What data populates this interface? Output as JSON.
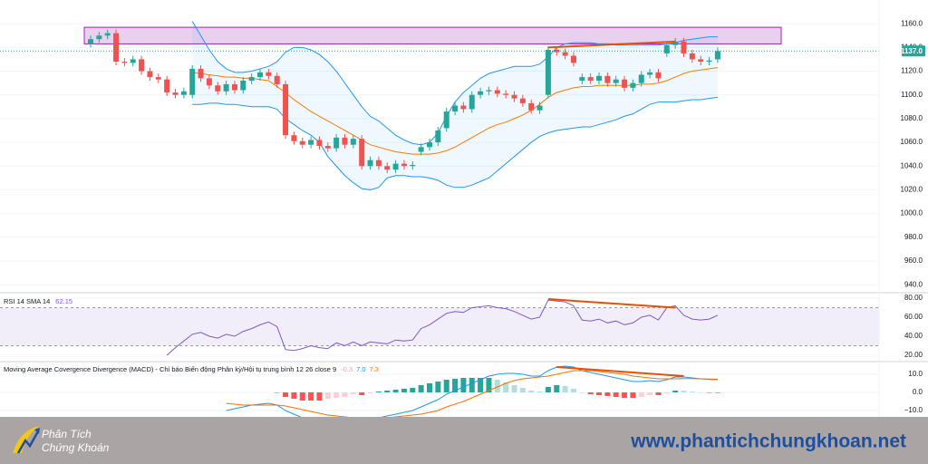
{
  "chart_data": [
    {
      "type": "candlestick",
      "open": [
        1143,
        1147,
        1150,
        1152,
        1128,
        1127,
        1130,
        1120,
        1115,
        1113,
        1102,
        1100,
        1100,
        1122,
        1114,
        1108,
        1103,
        1109,
        1104,
        1112,
        1115,
        1119,
        1116,
        1109,
        1066,
        1061,
        1058,
        1062,
        1057,
        1055,
        1064,
        1058,
        1063,
        1040,
        1045,
        1040,
        1037,
        1042,
        1040,
        1052,
        1056,
        1060,
        1072,
        1086,
        1091,
        1088,
        1100,
        1103,
        1104,
        1101,
        1100,
        1097,
        1093,
        1087,
        1100,
        1138,
        1136,
        1133,
        1112,
        1115,
        1112,
        1116,
        1110,
        1113,
        1106,
        1110,
        1117,
        1119,
        1135,
        1142,
        1145,
        1135,
        1130,
        1128,
        1130
      ],
      "high": [
        1150,
        1153,
        1155,
        1155,
        1131,
        1133,
        1133,
        1123,
        1118,
        1116,
        1105,
        1106,
        1125,
        1125,
        1117,
        1111,
        1112,
        1112,
        1115,
        1118,
        1122,
        1122,
        1119,
        1112,
        1069,
        1064,
        1065,
        1065,
        1060,
        1067,
        1067,
        1066,
        1066,
        1048,
        1048,
        1043,
        1045,
        1045,
        1044,
        1059,
        1063,
        1073,
        1089,
        1094,
        1094,
        1103,
        1106,
        1107,
        1107,
        1104,
        1103,
        1100,
        1096,
        1094,
        1141,
        1141,
        1139,
        1136,
        1118,
        1118,
        1119,
        1119,
        1116,
        1116,
        1113,
        1120,
        1122,
        1122,
        1145,
        1148,
        1148,
        1138,
        1133,
        1132,
        1140
      ],
      "low": [
        1140,
        1144,
        1147,
        1125,
        1124,
        1124,
        1117,
        1112,
        1110,
        1099,
        1097,
        1097,
        1097,
        1111,
        1105,
        1100,
        1100,
        1101,
        1101,
        1109,
        1112,
        1113,
        1106,
        1063,
        1058,
        1055,
        1055,
        1054,
        1052,
        1052,
        1055,
        1055,
        1037,
        1037,
        1037,
        1034,
        1034,
        1037,
        1037,
        1049,
        1053,
        1057,
        1069,
        1083,
        1085,
        1085,
        1097,
        1100,
        1098,
        1097,
        1094,
        1090,
        1084,
        1084,
        1097,
        1133,
        1130,
        1124,
        1109,
        1109,
        1109,
        1107,
        1107,
        1103,
        1103,
        1107,
        1114,
        1111,
        1132,
        1139,
        1132,
        1127,
        1125,
        1125,
        1127
      ],
      "close": [
        1147,
        1150,
        1152,
        1128,
        1127,
        1130,
        1120,
        1115,
        1113,
        1102,
        1100,
        1103,
        1122,
        1114,
        1108,
        1103,
        1109,
        1104,
        1112,
        1115,
        1119,
        1116,
        1109,
        1066,
        1061,
        1058,
        1062,
        1057,
        1055,
        1064,
        1058,
        1063,
        1040,
        1045,
        1040,
        1037,
        1042,
        1040,
        1041,
        1056,
        1060,
        1070,
        1086,
        1091,
        1088,
        1100,
        1103,
        1104,
        1101,
        1100,
        1097,
        1093,
        1087,
        1091,
        1138,
        1136,
        1133,
        1127,
        1115,
        1112,
        1116,
        1110,
        1113,
        1106,
        1110,
        1117,
        1119,
        1114,
        1142,
        1145,
        1135,
        1130,
        1128,
        1129,
        1137
      ],
      "up_color": "#26a69a",
      "down_color": "#ef5350",
      "bands": {
        "upper": [
          null,
          null,
          null,
          null,
          null,
          null,
          null,
          null,
          null,
          null,
          null,
          null,
          1162,
          1150,
          1138,
          1128,
          1122,
          1119,
          1119,
          1120,
          1122,
          1124,
          1128,
          1136,
          1140,
          1140,
          1138,
          1134,
          1128,
          1120,
          1110,
          1100,
          1090,
          1082,
          1078,
          1072,
          1066,
          1062,
          1059,
          1058,
          1060,
          1068,
          1082,
          1094,
          1102,
          1108,
          1114,
          1118,
          1120,
          1122,
          1124,
          1124,
          1124,
          1126,
          1132,
          1140,
          1143,
          1144,
          1144,
          1144,
          1143,
          1143,
          1142,
          1142,
          1142,
          1142,
          1142,
          1142,
          1143,
          1144,
          1146,
          1147,
          1148,
          1149,
          1149
        ],
        "middle": [
          null,
          null,
          null,
          null,
          null,
          null,
          null,
          null,
          null,
          null,
          null,
          null,
          1119,
          1118,
          1117,
          1116,
          1115,
          1115,
          1114,
          1114,
          1113,
          1112,
          1107,
          1102,
          1096,
          1091,
          1086,
          1082,
          1078,
          1074,
          1070,
          1066,
          1062,
          1058,
          1056,
          1054,
          1052,
          1051,
          1050,
          1050,
          1050,
          1051,
          1053,
          1056,
          1060,
          1064,
          1068,
          1072,
          1075,
          1077,
          1080,
          1083,
          1087,
          1092,
          1098,
          1102,
          1104,
          1106,
          1107,
          1107,
          1108,
          1108,
          1108,
          1108,
          1108,
          1109,
          1109,
          1110,
          1112,
          1115,
          1118,
          1120,
          1121,
          1122,
          1123
        ],
        "lower": [
          null,
          null,
          null,
          null,
          null,
          null,
          null,
          null,
          null,
          null,
          null,
          null,
          1092,
          1092,
          1093,
          1093,
          1092,
          1092,
          1091,
          1090,
          1090,
          1090,
          1088,
          1080,
          1075,
          1070,
          1066,
          1060,
          1048,
          1040,
          1032,
          1026,
          1021,
          1020,
          1022,
          1030,
          1032,
          1032,
          1031,
          1031,
          1030,
          1028,
          1024,
          1022,
          1022,
          1024,
          1027,
          1030,
          1036,
          1042,
          1048,
          1054,
          1060,
          1065,
          1068,
          1070,
          1071,
          1072,
          1073,
          1073,
          1075,
          1077,
          1079,
          1082,
          1084,
          1088,
          1092,
          1094,
          1094,
          1094,
          1095,
          1096,
          1096,
          1097,
          1098
        ],
        "band_color": "#2196f3",
        "middle_color": "#f57c00"
      },
      "zone": [
        1143,
        1157
      ],
      "zone_color": "#9c27b0",
      "divergence": [
        {
          "index": 54,
          "value": 1140
        },
        {
          "index": 69,
          "value": 1145
        }
      ],
      "divergence_color": "#e65100",
      "last_price": {
        "value": 1137,
        "label": "1137.0"
      },
      "ylim": [
        934,
        1180
      ],
      "yticks": [
        {
          "value": 940,
          "label": "940.0"
        },
        {
          "value": 960,
          "label": "960.0"
        },
        {
          "value": 980,
          "label": "980.0"
        },
        {
          "value": 1000,
          "label": "1000.0"
        },
        {
          "value": 1020,
          "label": "1020.0"
        },
        {
          "value": 1040,
          "label": "1040.0"
        },
        {
          "value": 1060,
          "label": "1060.0"
        },
        {
          "value": 1080,
          "label": "1080.0"
        },
        {
          "value": 1100,
          "label": "1100.0"
        },
        {
          "value": 1120,
          "label": "1120.0"
        },
        {
          "value": 1140,
          "label": "1140.0"
        },
        {
          "value": 1160,
          "label": "1160.0"
        }
      ],
      "grid": true
    },
    {
      "type": "rsi",
      "title": "RSI 14 SMA 14",
      "last_value": 62.15,
      "values": [
        null,
        null,
        null,
        null,
        null,
        null,
        null,
        null,
        null,
        20,
        28,
        35,
        42,
        44,
        40,
        38,
        42,
        40,
        45,
        48,
        52,
        55,
        50,
        26,
        25,
        27,
        30,
        28,
        27,
        33,
        30,
        34,
        30,
        34,
        33,
        32,
        36,
        35,
        36,
        48,
        52,
        58,
        64,
        66,
        65,
        70,
        71,
        72,
        70,
        69,
        66,
        62,
        58,
        60,
        78,
        77,
        76,
        72,
        57,
        56,
        58,
        54,
        56,
        52,
        54,
        60,
        62,
        57,
        70,
        72,
        62,
        58,
        57,
        58,
        62
      ],
      "color": "#7e57c2",
      "band": [
        30,
        70
      ],
      "divergence": [
        {
          "index": 54,
          "value": 79
        },
        {
          "index": 69,
          "value": 70
        }
      ],
      "divergence_color": "#e65100",
      "ylim": [
        14.3,
        83.8
      ],
      "yticks": [
        {
          "value": 20,
          "label": "20.00"
        },
        {
          "value": 40,
          "label": "40.00"
        },
        {
          "value": 60,
          "label": "60.00"
        },
        {
          "value": 80,
          "label": "80.00"
        }
      ]
    },
    {
      "type": "macd",
      "title": "Moving Average Covergence Divergence (MACD) - Chỉ báo Biến động Phân kỳ/Hội tụ trung bình 12 26 close 9",
      "last_values": [
        -0.3,
        {
          "value": 7,
          "label": "7.0"
        },
        7.3
      ],
      "histogram": [
        null,
        null,
        null,
        null,
        null,
        null,
        null,
        null,
        null,
        null,
        null,
        null,
        null,
        null,
        null,
        null,
        null,
        null,
        null,
        null,
        null,
        null,
        0,
        -2.5,
        -3.5,
        -4.5,
        -4.5,
        -4.5,
        -3.5,
        -3,
        -2.5,
        -1,
        -1.5,
        -0.5,
        0.5,
        1,
        1.5,
        2,
        2.5,
        4,
        5,
        6,
        7,
        7.5,
        8,
        8,
        8,
        8,
        7,
        5.5,
        4,
        2.5,
        1,
        0.5,
        3,
        4,
        3.5,
        2,
        0,
        -1,
        -1.5,
        -2,
        -2.5,
        -3,
        -3,
        -2.5,
        -1.5,
        -1.5,
        -0.5,
        1,
        0.9,
        0.4,
        0,
        -0.2,
        -0.3
      ],
      "macd": [
        null,
        null,
        null,
        null,
        null,
        null,
        null,
        null,
        null,
        null,
        null,
        null,
        null,
        null,
        null,
        null,
        -10,
        -9,
        -8,
        -7,
        -6.5,
        -6,
        -7,
        -10,
        -12,
        -14,
        -15,
        -16,
        -16,
        -16,
        -16,
        -15,
        -16,
        -15,
        -14,
        -13,
        -12,
        -11,
        -10,
        -8,
        -6,
        -4,
        -1,
        1,
        3,
        5,
        7,
        9,
        10,
        10.5,
        10.5,
        10,
        9,
        9,
        12,
        14,
        14.5,
        14,
        12,
        11,
        10,
        9,
        8,
        7,
        6,
        6,
        6.5,
        6,
        7,
        8.5,
        8.5,
        8,
        7.5,
        7.2,
        7
      ],
      "signal": [
        null,
        null,
        null,
        null,
        null,
        null,
        null,
        null,
        null,
        null,
        null,
        null,
        null,
        null,
        null,
        null,
        -6,
        -6.5,
        -7,
        -7,
        -7,
        -7,
        -7,
        -7.5,
        -8.5,
        -9.5,
        -10.5,
        -11.5,
        -12.5,
        -13,
        -13.5,
        -14,
        -14.5,
        -14.5,
        -14.5,
        -14,
        -13.5,
        -13,
        -12.5,
        -12,
        -11,
        -10,
        -8,
        -6.5,
        -5,
        -3,
        -1,
        1,
        3,
        5,
        6.5,
        7.5,
        8,
        8.5,
        9,
        10,
        11,
        12,
        12,
        12,
        11.5,
        11,
        10.5,
        10,
        9,
        8.5,
        8,
        7.5,
        7.5,
        7.5,
        7.6,
        7.6,
        7.5,
        7.4,
        7.3
      ],
      "colors": {
        "histogram_up": "#26a69a",
        "histogram_up_fading": "#b2dfdb",
        "histogram_down": "#ff5252",
        "histogram_down_fading": "#ffcdd2",
        "macd": "#2196f3",
        "signal": "#ff6d00"
      },
      "divergence": [
        {
          "index": 55,
          "value": 14
        },
        {
          "index": 70,
          "value": 9
        }
      ],
      "divergence_color": "#e65100",
      "ylim": [
        -13.5,
        16.5
      ],
      "yticks": [
        {
          "value": -10,
          "label": "−10.0"
        },
        {
          "value": 0,
          "label": "0.0"
        },
        {
          "value": 10,
          "label": "10.0"
        }
      ]
    }
  ],
  "footer": {
    "brand": [
      "Phân Tích",
      "Chứng Khoán"
    ],
    "website": "www.phantichchungkhoan.net"
  }
}
